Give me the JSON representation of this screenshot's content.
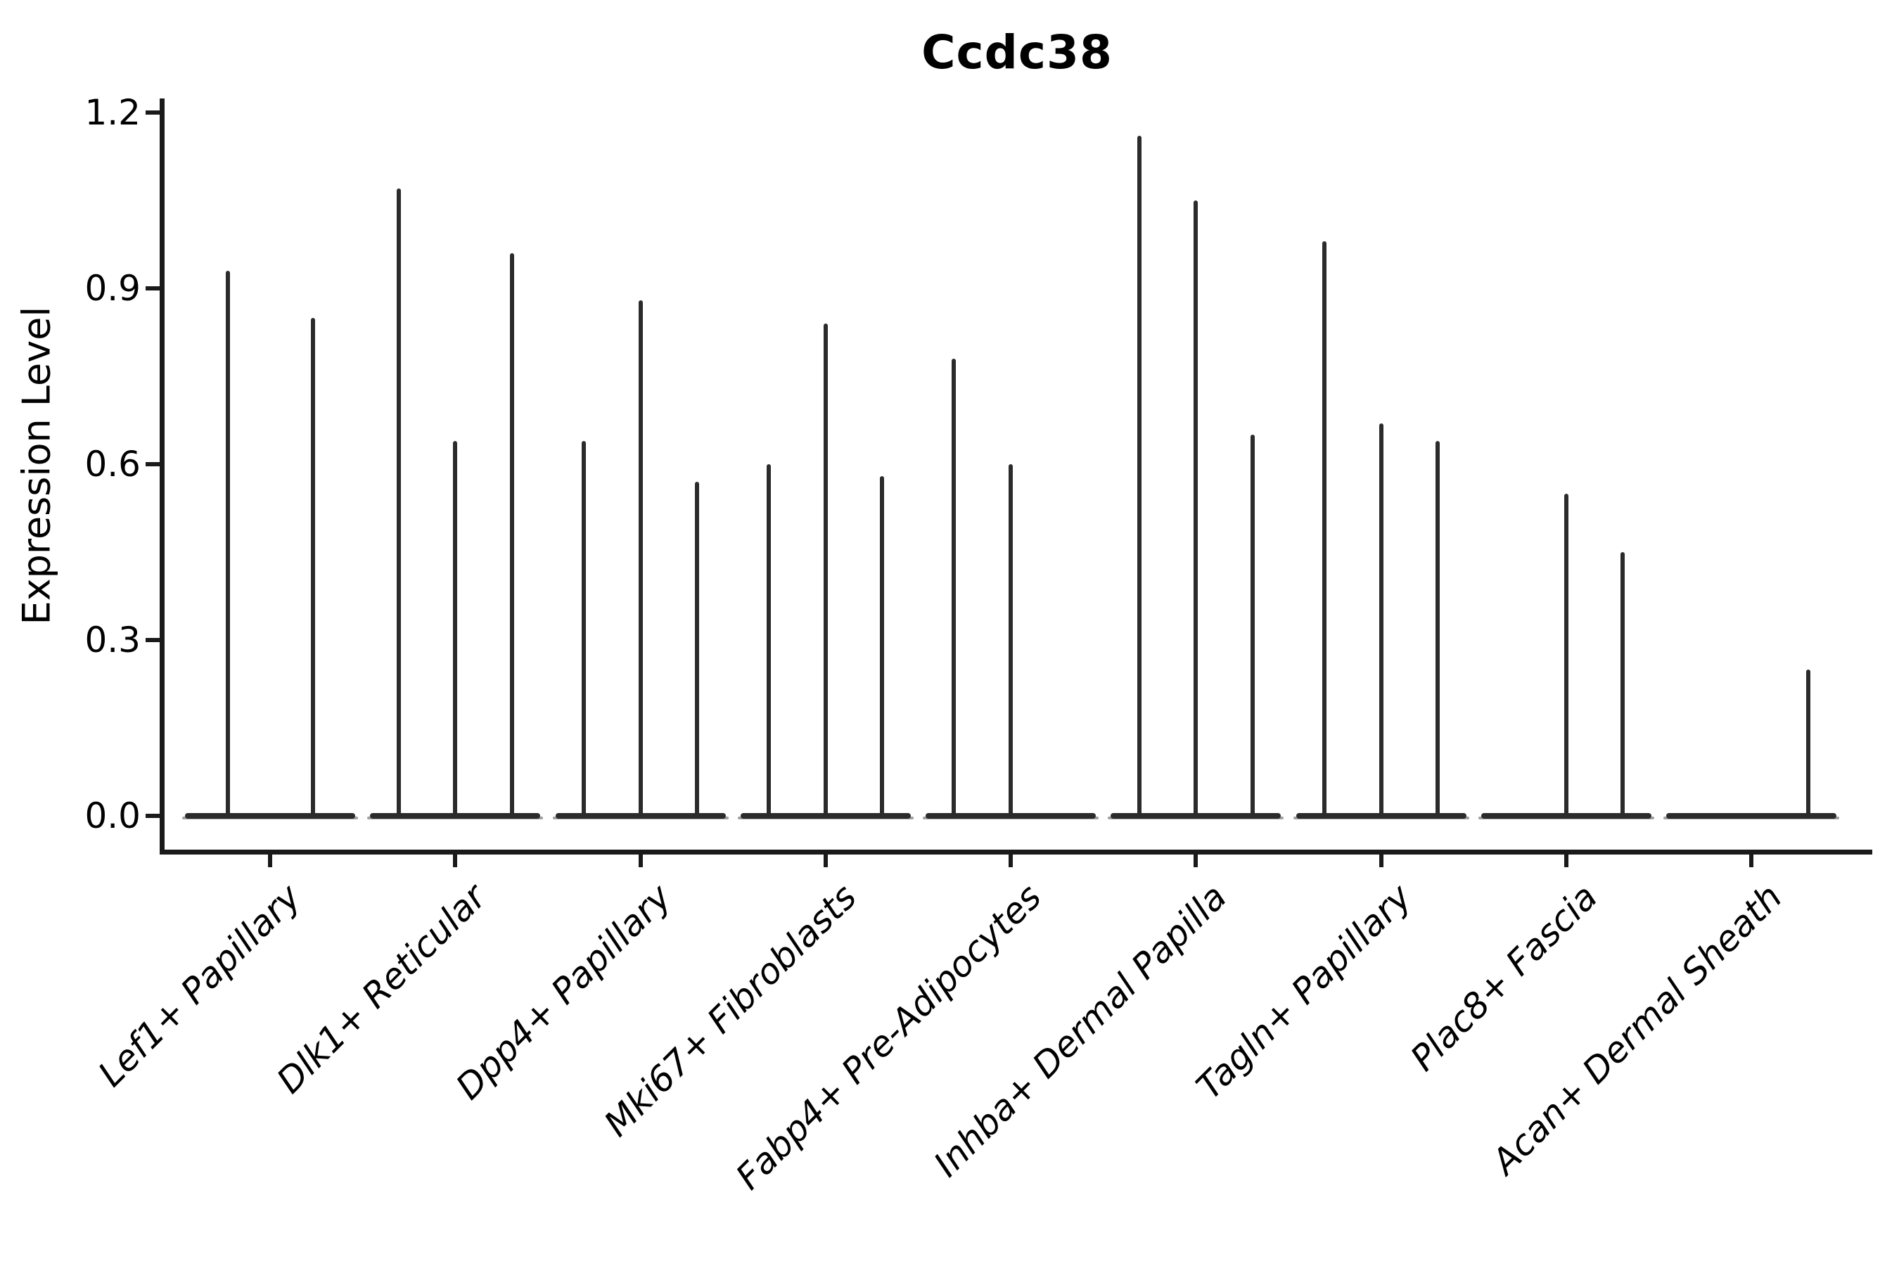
{
  "chart_data": {
    "type": "violin",
    "title": "Ccdc38",
    "ylabel": "Expression Level",
    "xlabel": "",
    "ylim": [
      0,
      1.2
    ],
    "ytick_values": [
      0,
      0.3,
      0.6,
      0.9,
      1.2
    ],
    "yticks": [
      "0.0",
      "0.3",
      "0.6",
      "0.9",
      "1.2"
    ],
    "grid": false,
    "legend": "none",
    "background_color": "#ffffff",
    "line_color": "#2b2b2b",
    "categories": [
      "Lef1+ Papillary",
      "Dlk1+ Reticular",
      "Dpp4+ Papillary",
      "Mki67+ Fibroblasts",
      "Fabp4+ Pre-Adipocytes",
      "Inhba+ Dermal Papilla",
      "Tagln+ Papillary",
      "Plac8+ Fascia",
      "Acan+ Dermal Sheath"
    ],
    "series": [
      {
        "category": "Lef1+ Papillary",
        "violin_maxima": [
          0.93,
          0.85
        ]
      },
      {
        "category": "Dlk1+ Reticular",
        "violin_maxima": [
          1.07,
          0.64,
          0.96
        ]
      },
      {
        "category": "Dpp4+ Papillary",
        "violin_maxima": [
          0.64,
          0.88,
          0.57
        ]
      },
      {
        "category": "Mki67+ Fibroblasts",
        "violin_maxima": [
          0.6,
          0.84,
          0.58
        ]
      },
      {
        "category": "Fabp4+ Pre-Adipocytes",
        "violin_maxima": [
          0.78,
          0.6,
          0
        ]
      },
      {
        "category": "Inhba+ Dermal Papilla",
        "violin_maxima": [
          1.16,
          1.05,
          0.65
        ]
      },
      {
        "category": "Tagln+ Papillary",
        "violin_maxima": [
          0.98,
          0.67,
          0.64
        ]
      },
      {
        "category": "Plac8+ Fascia",
        "violin_maxima": [
          0,
          0.55,
          0.45
        ]
      },
      {
        "category": "Acan+ Dermal Sheath",
        "violin_maxima": [
          0,
          0,
          0.25
        ]
      }
    ]
  }
}
